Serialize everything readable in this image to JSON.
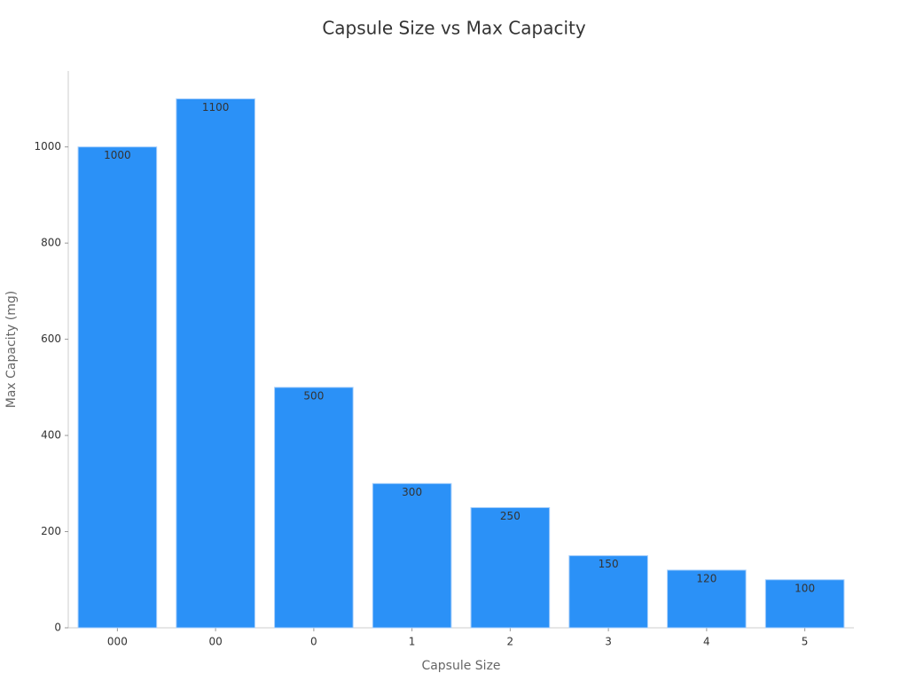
{
  "chart_data": {
    "type": "bar",
    "title": "Capsule Size vs Max Capacity",
    "x_label": "Capsule Size",
    "y_label": "Max Capacity (mg)",
    "categories": [
      "000",
      "00",
      "0",
      "1",
      "2",
      "3",
      "4",
      "5"
    ],
    "values": [
      1000,
      1100,
      500,
      300,
      250,
      150,
      120,
      100
    ],
    "color": "#2b91f7",
    "ylim": [
      0,
      1158
    ],
    "yticks": [
      0,
      200,
      400,
      600,
      800,
      1000
    ],
    "grid": false
  }
}
